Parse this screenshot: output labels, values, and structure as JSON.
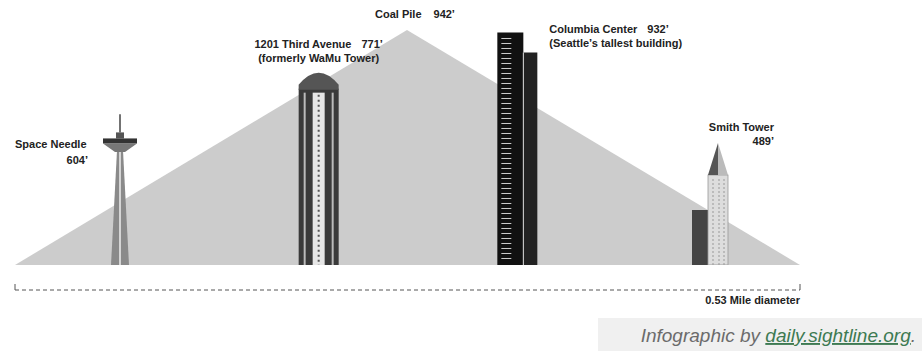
{
  "chart_data": {
    "type": "height_comparison",
    "pile": {
      "label": "Coal Pile",
      "value": 942,
      "value_label": "942’",
      "color": "#cccccc"
    },
    "categories": [
      "Space Needle",
      "1201 Third Avenue",
      "Columbia Center",
      "Smith Tower"
    ],
    "notes": [
      null,
      "(formerly WaMu Tower)",
      "(Seattle’s tallest building)",
      null
    ],
    "values": [
      604,
      771,
      932,
      489
    ],
    "value_labels": [
      "604’",
      "771’",
      "932’",
      "489’"
    ],
    "diameter_label": "0.53 Mile diameter"
  },
  "credit": [
    "Infographic by ",
    "daily.sightline.org",
    "."
  ]
}
